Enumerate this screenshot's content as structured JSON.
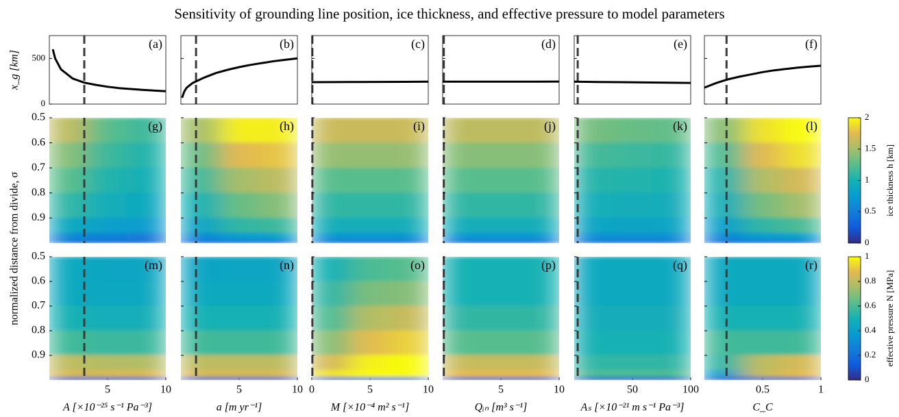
{
  "title": "Sensitivity of grounding line position, ice thickness, and effective pressure to model parameters",
  "ylabel": "normalized distance from divide, σ",
  "x_axes": [
    {
      "label": "A [×10⁻²⁵ s⁻¹ Pa⁻³]",
      "xlim": [
        0,
        10
      ],
      "xticks": [
        5,
        10
      ],
      "baseline": 3
    },
    {
      "label": "a [m yr⁻¹]",
      "xlim": [
        0,
        10
      ],
      "xticks": [
        5,
        10
      ],
      "baseline": 1.3
    },
    {
      "label": "M [×10⁻⁴ m² s⁻¹]",
      "xlim": [
        0,
        10
      ],
      "xticks": [
        0,
        5,
        10
      ],
      "baseline": 0.05
    },
    {
      "label": "Qᵢₙ [m³ s⁻¹]",
      "xlim": [
        0,
        10
      ],
      "xticks": [
        5,
        10
      ],
      "baseline": 0.1
    },
    {
      "label": "Aₛ [×10⁻²¹ m s⁻¹ Pa⁻³]",
      "xlim": [
        0,
        100
      ],
      "xticks": [
        50,
        100
      ],
      "baseline": 3
    },
    {
      "label": "C_C",
      "xlim": [
        0,
        1
      ],
      "xticks": [
        0.5,
        1
      ],
      "baseline": 0.19
    }
  ],
  "chart_data": [
    {
      "type": "line",
      "ylabel": "x_g [km]",
      "ylim": [
        0,
        750
      ],
      "yticks": [
        0,
        500
      ],
      "color": "#000000",
      "panels": [
        {
          "label": "(a)",
          "x": [
            0.3,
            0.5,
            1,
            2,
            3,
            4,
            5,
            6,
            7,
            8,
            9,
            10
          ],
          "y": [
            600,
            500,
            380,
            280,
            235,
            210,
            190,
            175,
            165,
            155,
            148,
            140
          ]
        },
        {
          "label": "(b)",
          "x": [
            0.1,
            0.3,
            0.5,
            1,
            2,
            3,
            4,
            5,
            6,
            7,
            8,
            9,
            10
          ],
          "y": [
            70,
            140,
            180,
            230,
            290,
            340,
            375,
            405,
            430,
            450,
            470,
            485,
            500
          ]
        },
        {
          "label": "(c)",
          "x": [
            0,
            2,
            4,
            6,
            8,
            10
          ],
          "y": [
            240,
            241,
            242,
            243,
            244,
            245
          ]
        },
        {
          "label": "(d)",
          "x": [
            0,
            2,
            4,
            6,
            8,
            10
          ],
          "y": [
            245,
            245,
            246,
            246,
            246,
            247
          ]
        },
        {
          "label": "(e)",
          "x": [
            0,
            20,
            40,
            60,
            80,
            100
          ],
          "y": [
            245,
            242,
            240,
            237,
            235,
            232
          ]
        },
        {
          "label": "(f)",
          "x": [
            0,
            0.1,
            0.2,
            0.3,
            0.4,
            0.5,
            0.6,
            0.7,
            0.8,
            0.9,
            1
          ],
          "y": [
            180,
            230,
            270,
            300,
            325,
            350,
            370,
            385,
            400,
            410,
            420
          ]
        }
      ]
    },
    {
      "type": "heatmap",
      "colorbar_label": "ice thickness h [km]",
      "zlim": [
        0,
        2
      ],
      "zticks": [
        0,
        0.5,
        1,
        1.5,
        2
      ],
      "ylim": [
        0.5,
        1
      ],
      "yticks": [
        0.5,
        0.6,
        0.7,
        0.8,
        0.9
      ],
      "y_edges": [
        0.5,
        0.6,
        0.7,
        0.8,
        0.9,
        0.96,
        0.99,
        1
      ],
      "panels": [
        {
          "label": "(g)",
          "z": [
            [
              1.6,
              1.25,
              1.15
            ],
            [
              1.4,
              1.15,
              1.05
            ],
            [
              1.25,
              1.05,
              0.98
            ],
            [
              1.1,
              0.95,
              0.9
            ],
            [
              0.9,
              0.8,
              0.75
            ],
            [
              0.6,
              0.55,
              0.5
            ],
            [
              0.35,
              0.3,
              0.3
            ]
          ]
        },
        {
          "label": "(h)",
          "z": [
            [
              1.5,
              1.95,
              1.95
            ],
            [
              1.3,
              1.75,
              1.8
            ],
            [
              1.15,
              1.5,
              1.6
            ],
            [
              1.0,
              1.3,
              1.4
            ],
            [
              0.85,
              1.1,
              1.15
            ],
            [
              0.6,
              0.75,
              0.8
            ],
            [
              0.3,
              0.35,
              0.35
            ]
          ]
        },
        {
          "label": "(i)",
          "z": [
            [
              1.65,
              1.65,
              1.65
            ],
            [
              1.45,
              1.45,
              1.45
            ],
            [
              1.25,
              1.25,
              1.25
            ],
            [
              1.1,
              1.1,
              1.1
            ],
            [
              0.95,
              0.95,
              0.95
            ],
            [
              0.7,
              0.7,
              0.7
            ],
            [
              0.35,
              0.35,
              0.35
            ]
          ]
        },
        {
          "label": "(j)",
          "z": [
            [
              1.6,
              1.6,
              1.6
            ],
            [
              1.4,
              1.4,
              1.4
            ],
            [
              1.25,
              1.25,
              1.25
            ],
            [
              1.1,
              1.1,
              1.1
            ],
            [
              0.95,
              0.95,
              0.95
            ],
            [
              0.7,
              0.7,
              0.7
            ],
            [
              0.35,
              0.35,
              0.35
            ]
          ]
        },
        {
          "label": "(k)",
          "z": [
            [
              1.35,
              1.3,
              1.28
            ],
            [
              1.18,
              1.15,
              1.12
            ],
            [
              1.07,
              1.05,
              1.03
            ],
            [
              0.96,
              0.95,
              0.94
            ],
            [
              0.86,
              0.85,
              0.84
            ],
            [
              0.65,
              0.65,
              0.65
            ],
            [
              0.35,
              0.35,
              0.35
            ]
          ]
        },
        {
          "label": "(l)",
          "z": [
            [
              1.4,
              1.9,
              2.0
            ],
            [
              1.2,
              1.75,
              1.9
            ],
            [
              1.05,
              1.55,
              1.7
            ],
            [
              0.95,
              1.35,
              1.5
            ],
            [
              0.8,
              1.1,
              1.2
            ],
            [
              0.6,
              0.75,
              0.8
            ],
            [
              0.3,
              0.35,
              0.35
            ]
          ]
        }
      ]
    },
    {
      "type": "heatmap",
      "colorbar_label": "effective pressure N [MPa]",
      "zlim": [
        0,
        1
      ],
      "zticks": [
        0,
        0.2,
        0.4,
        0.6,
        0.8,
        1
      ],
      "ylim": [
        0.5,
        1
      ],
      "yticks": [
        0.5,
        0.6,
        0.7,
        0.8,
        0.9
      ],
      "y_edges": [
        0.5,
        0.6,
        0.7,
        0.8,
        0.9,
        0.96,
        0.99,
        1
      ],
      "panels": [
        {
          "label": "(m)",
          "z": [
            [
              0.45,
              0.43,
              0.43
            ],
            [
              0.45,
              0.44,
              0.44
            ],
            [
              0.5,
              0.48,
              0.48
            ],
            [
              0.58,
              0.57,
              0.57
            ],
            [
              0.8,
              0.78,
              0.78
            ],
            [
              0.85,
              0.85,
              0.86
            ],
            [
              0.1,
              0.1,
              0.1
            ]
          ]
        },
        {
          "label": "(n)",
          "z": [
            [
              0.42,
              0.43,
              0.43
            ],
            [
              0.45,
              0.45,
              0.45
            ],
            [
              0.5,
              0.5,
              0.5
            ],
            [
              0.58,
              0.58,
              0.58
            ],
            [
              0.8,
              0.8,
              0.8
            ],
            [
              0.85,
              0.85,
              0.85
            ],
            [
              0.1,
              0.1,
              0.1
            ]
          ]
        },
        {
          "label": "(o)",
          "z": [
            [
              0.5,
              0.6,
              0.62
            ],
            [
              0.55,
              0.68,
              0.7
            ],
            [
              0.6,
              0.78,
              0.82
            ],
            [
              0.7,
              0.88,
              0.92
            ],
            [
              0.85,
              0.98,
              1
            ],
            [
              0.95,
              1,
              1
            ],
            [
              0.15,
              0.15,
              0.15
            ]
          ]
        },
        {
          "label": "(p)",
          "z": [
            [
              0.5,
              0.5,
              0.5
            ],
            [
              0.5,
              0.5,
              0.5
            ],
            [
              0.55,
              0.55,
              0.55
            ],
            [
              0.62,
              0.62,
              0.62
            ],
            [
              0.82,
              0.82,
              0.82
            ],
            [
              0.88,
              0.88,
              0.88
            ],
            [
              0.1,
              0.1,
              0.1
            ]
          ]
        },
        {
          "label": "(q)",
          "z": [
            [
              0.45,
              0.45,
              0.45
            ],
            [
              0.45,
              0.45,
              0.45
            ],
            [
              0.47,
              0.47,
              0.47
            ],
            [
              0.5,
              0.5,
              0.5
            ],
            [
              0.55,
              0.55,
              0.55
            ],
            [
              0.6,
              0.6,
              0.6
            ],
            [
              0.1,
              0.1,
              0.1
            ]
          ]
        },
        {
          "label": "(r)",
          "z": [
            [
              0.45,
              0.45,
              0.45
            ],
            [
              0.45,
              0.45,
              0.45
            ],
            [
              0.5,
              0.5,
              0.5
            ],
            [
              0.58,
              0.58,
              0.58
            ],
            [
              0.55,
              0.8,
              0.85
            ],
            [
              0.4,
              0.82,
              0.88
            ],
            [
              0.1,
              0.1,
              0.1
            ]
          ]
        }
      ]
    }
  ]
}
